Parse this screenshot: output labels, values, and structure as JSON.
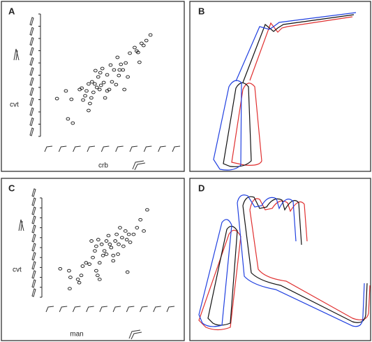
{
  "chart_data": [
    {
      "type": "scatter",
      "title": "A",
      "x_label": "crb",
      "y_label": "cvt",
      "xlim": [
        0,
        200
      ],
      "ylim": [
        0,
        175
      ],
      "x": [
        24,
        37,
        40,
        47,
        45,
        57,
        62,
        65,
        60,
        67,
        70,
        72,
        74,
        77,
        79,
        82,
        80,
        84,
        86,
        88,
        90,
        92,
        94,
        97,
        100,
        102,
        104,
        107,
        110,
        112,
        114,
        117,
        120,
        122,
        124,
        127,
        130,
        137,
        140,
        142,
        147,
        150,
        154,
        160,
        144,
        115,
        75,
        87,
        97,
        70
      ],
      "values": [
        54,
        65,
        25,
        19,
        53,
        67,
        52,
        58,
        69,
        65,
        37,
        47,
        55,
        63,
        75,
        70,
        94,
        85,
        67,
        73,
        97,
        77,
        55,
        88,
        67,
        102,
        78,
        95,
        74,
        113,
        87,
        103,
        95,
        67,
        105,
        85,
        119,
        127,
        122,
        120,
        133,
        130,
        137,
        145,
        106,
        95,
        78,
        91,
        65,
        75
      ]
    },
    {
      "type": "scatter",
      "title": "C",
      "x_label": "man",
      "y_label": "cvt",
      "xlim": [
        0,
        190
      ],
      "ylim": [
        0,
        150
      ],
      "x": [
        27,
        40,
        42,
        41,
        53,
        55,
        58,
        60,
        65,
        70,
        75,
        78,
        80,
        82,
        85,
        80,
        83,
        88,
        92,
        95,
        98,
        100,
        102,
        105,
        108,
        110,
        113,
        115,
        118,
        120,
        123,
        125,
        128,
        130,
        126,
        135,
        140,
        145,
        150,
        155,
        105,
        90,
        73,
        85,
        95,
        112
      ],
      "values": [
        43,
        40,
        30,
        13,
        27,
        22,
        33,
        47,
        52,
        50,
        60,
        70,
        40,
        33,
        27,
        77,
        87,
        80,
        70,
        85,
        93,
        80,
        75,
        63,
        85,
        95,
        80,
        105,
        90,
        77,
        100,
        87,
        95,
        83,
        38,
        95,
        105,
        117,
        100,
        132,
        55,
        63,
        85,
        52,
        65,
        65
      ]
    }
  ],
  "panels": [
    {
      "label": "B"
    },
    {
      "label": "D"
    }
  ]
}
